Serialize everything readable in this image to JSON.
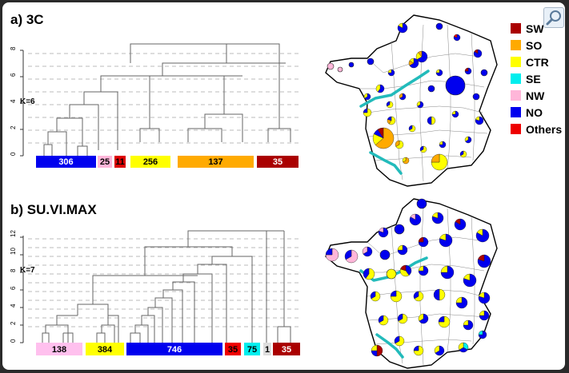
{
  "panel_a": {
    "title": "a) 3C",
    "k_label": "K=6",
    "y_ticks": [
      "0",
      "2",
      "4",
      "6",
      "8"
    ],
    "clusters": [
      {
        "count": "306",
        "color": "#0000ee",
        "text": "#ffffff"
      },
      {
        "count": "25",
        "color": "#ffb6d9",
        "text": "#000000"
      },
      {
        "count": "11",
        "color": "#dd0000",
        "text": "#000000"
      },
      {
        "count": "256",
        "color": "#ffff00",
        "text": "#000000"
      },
      {
        "count": "137",
        "color": "#ffaa00",
        "text": "#000000"
      },
      {
        "count": "35",
        "color": "#aa0000",
        "text": "#ffffff"
      }
    ]
  },
  "panel_b": {
    "title": "b) SU.VI.MAX",
    "k_label": "K=7",
    "y_ticks": [
      "0",
      "2",
      "4",
      "6",
      "8",
      "10",
      "12"
    ],
    "clusters": [
      {
        "count": "138",
        "color": "#ffc0ee",
        "text": "#000000"
      },
      {
        "count": "384",
        "color": "#ffff00",
        "text": "#000000"
      },
      {
        "count": "746",
        "color": "#0000ee",
        "text": "#ffffff"
      },
      {
        "count": "35",
        "color": "#ee0000",
        "text": "#000000"
      },
      {
        "count": "75",
        "color": "#00eeee",
        "text": "#000000"
      },
      {
        "count": "1",
        "color": "#dddddd",
        "text": "#000000"
      },
      {
        "count": "35",
        "color": "#aa0000",
        "text": "#ffffff"
      }
    ]
  },
  "legend": [
    {
      "label": "SW",
      "color": "#aa0000"
    },
    {
      "label": "SO",
      "color": "#ffaa00"
    },
    {
      "label": "CTR",
      "color": "#ffff00"
    },
    {
      "label": "SE",
      "color": "#00eeee"
    },
    {
      "label": "NW",
      "color": "#ffb6d9"
    },
    {
      "label": "NO",
      "color": "#0000ee"
    },
    {
      "label": "Others",
      "color": "#ee0000"
    }
  ],
  "map_colors": {
    "river": "#22bbbb",
    "outline": "#000000",
    "dept": "#888888"
  }
}
